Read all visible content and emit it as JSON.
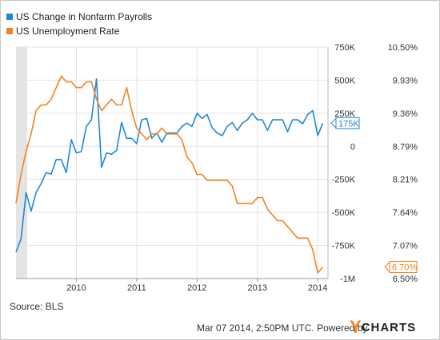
{
  "legend": {
    "items": [
      {
        "label": "US Change in Nonfarm Payrolls",
        "color": "#1f88d8"
      },
      {
        "label": "US Unemployment Rate",
        "color": "#f5821f"
      }
    ]
  },
  "source": "Source: BLS",
  "footer": {
    "timestamp": "Mar 07 2014, 2:50PM UTC.",
    "powered_by": "Powered by",
    "logo_y": "Y",
    "logo_rest": "CHARTS"
  },
  "chart_data": {
    "type": "line",
    "x_ticks": [
      "2010",
      "2011",
      "2012",
      "2013",
      "2014"
    ],
    "x_range": [
      2009.0,
      2014.17
    ],
    "series": [
      {
        "name": "US Change in Nonfarm Payrolls",
        "axis": "left",
        "color": "#1f88d8",
        "last_value_label": "175K",
        "x": [
          2009.0,
          2009.083,
          2009.167,
          2009.25,
          2009.333,
          2009.417,
          2009.5,
          2009.583,
          2009.667,
          2009.75,
          2009.833,
          2009.917,
          2010.0,
          2010.083,
          2010.167,
          2010.25,
          2010.333,
          2010.417,
          2010.5,
          2010.583,
          2010.667,
          2010.75,
          2010.833,
          2010.917,
          2011.0,
          2011.083,
          2011.167,
          2011.25,
          2011.333,
          2011.417,
          2011.5,
          2011.583,
          2011.667,
          2011.75,
          2011.833,
          2011.917,
          2012.0,
          2012.083,
          2012.167,
          2012.25,
          2012.333,
          2012.417,
          2012.5,
          2012.583,
          2012.667,
          2012.75,
          2012.833,
          2012.917,
          2013.0,
          2013.083,
          2013.167,
          2013.25,
          2013.333,
          2013.417,
          2013.5,
          2013.583,
          2013.667,
          2013.75,
          2013.833,
          2013.917,
          2014.0,
          2014.083
        ],
        "values": [
          -800,
          -700,
          -350,
          -490,
          -350,
          -280,
          -200,
          -210,
          -100,
          -100,
          -200,
          50,
          -50,
          -40,
          150,
          200,
          510,
          -160,
          -50,
          -60,
          -30,
          180,
          60,
          60,
          20,
          200,
          210,
          60,
          100,
          30,
          100,
          100,
          100,
          150,
          175,
          150,
          250,
          210,
          240,
          140,
          100,
          80,
          150,
          180,
          120,
          175,
          200,
          250,
          200,
          200,
          120,
          200,
          200,
          200,
          110,
          200,
          200,
          170,
          240,
          270,
          80,
          175
        ]
      },
      {
        "name": "US Unemployment Rate",
        "axis": "right",
        "color": "#f5821f",
        "last_value_label": "6.70%",
        "x": [
          2009.0,
          2009.083,
          2009.167,
          2009.25,
          2009.333,
          2009.417,
          2009.5,
          2009.583,
          2009.667,
          2009.75,
          2009.833,
          2009.917,
          2010.0,
          2010.083,
          2010.167,
          2010.25,
          2010.333,
          2010.417,
          2010.5,
          2010.583,
          2010.667,
          2010.75,
          2010.833,
          2010.917,
          2011.0,
          2011.083,
          2011.167,
          2011.25,
          2011.333,
          2011.417,
          2011.5,
          2011.583,
          2011.667,
          2011.75,
          2011.833,
          2011.917,
          2012.0,
          2012.083,
          2012.167,
          2012.25,
          2012.333,
          2012.417,
          2012.5,
          2012.583,
          2012.667,
          2012.75,
          2012.833,
          2012.917,
          2013.0,
          2013.083,
          2013.167,
          2013.25,
          2013.333,
          2013.417,
          2013.5,
          2013.583,
          2013.667,
          2013.75,
          2013.833,
          2013.917,
          2014.0,
          2014.083
        ],
        "values": [
          7.8,
          8.3,
          8.7,
          9.0,
          9.4,
          9.5,
          9.5,
          9.6,
          9.8,
          10.0,
          9.9,
          9.9,
          9.8,
          9.8,
          9.9,
          9.9,
          9.6,
          9.4,
          9.5,
          9.6,
          9.5,
          9.5,
          9.8,
          9.4,
          9.1,
          9.0,
          8.9,
          9.0,
          9.0,
          9.1,
          9.0,
          9.0,
          9.0,
          8.9,
          8.6,
          8.5,
          8.3,
          8.3,
          8.2,
          8.2,
          8.2,
          8.2,
          8.2,
          8.1,
          7.8,
          7.8,
          7.8,
          7.8,
          7.9,
          7.9,
          7.7,
          7.6,
          7.5,
          7.5,
          7.4,
          7.3,
          7.2,
          7.2,
          7.2,
          7.0,
          6.6,
          6.7
        ]
      }
    ],
    "y_left": {
      "ticks": [
        "750K",
        "500K",
        "250K",
        "0",
        "-250K",
        "-500K",
        "-750K",
        "-1M"
      ],
      "range": [
        -1000,
        750
      ]
    },
    "y_right": {
      "ticks": [
        "10.50%",
        "9.93%",
        "9.36%",
        "8.79%",
        "8.21%",
        "7.64%",
        "7.07%",
        "6.50%"
      ],
      "range": [
        6.5,
        10.5
      ]
    },
    "grid": true,
    "legend_position": "top-left",
    "recession_shading": true
  }
}
